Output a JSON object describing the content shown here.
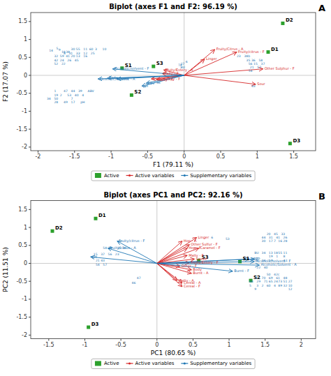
{
  "chart_data": [
    {
      "type": "biplot",
      "title": "Biplot (axes F1 and F2: 96.19 %)",
      "xlabel": "F1 (79.11 %)",
      "ylabel": "F2 (17.07 %)",
      "panel_label": "A",
      "xlim": [
        -2.1,
        1.8
      ],
      "ylim": [
        -2.1,
        1.75
      ],
      "xticks": [
        -2,
        -1.5,
        -1,
        -0.5,
        0,
        0.5,
        1,
        1.5
      ],
      "yticks": [
        -2,
        -1.5,
        -1,
        -0.5,
        0,
        0.5,
        1,
        1.5
      ],
      "grid": false,
      "legend": "bottom",
      "series": [
        {
          "name": "Active",
          "type": "scatter",
          "marker": "square",
          "color": "#2ca02c",
          "labels": [
            "D1",
            "D2",
            "D3",
            "S1",
            "S2",
            "S3"
          ],
          "x": [
            1.15,
            1.35,
            1.45,
            -0.85,
            -0.72,
            -0.42
          ],
          "values": [
            0.65,
            1.45,
            -1.9,
            0.2,
            -0.55,
            0.25
          ]
        },
        {
          "name": "Active variables",
          "type": "arrow",
          "color": "#d62728",
          "labels": [
            "Fruity/Citrus - A",
            "Fruity/citrus - F",
            "Linger",
            "Other Sulphur - F",
            "Sour",
            "Fruity/Estery - A",
            "Malty - F",
            "Malty - A",
            "Fruity/Estery - F"
          ],
          "x": [
            0.42,
            0.72,
            0.28,
            1.08,
            0.98,
            -0.28,
            -0.3,
            -0.38,
            -0.45
          ],
          "values": [
            0.72,
            0.65,
            0.45,
            0.18,
            -0.25,
            0.15,
            0.05,
            -0.12,
            -0.1
          ]
        },
        {
          "name": "Supplementary variables",
          "type": "arrow",
          "color": "#1f77b4",
          "labels": [
            "Alcoholic/solvent - F",
            "Alcoholic/Solvent - A",
            "Body",
            "Sweet",
            "ABV",
            "pH"
          ],
          "x": [
            -0.98,
            -1.18,
            -1.05,
            -0.92,
            -0.52,
            -0.58
          ],
          "values": [
            0.18,
            -0.1,
            -0.08,
            -0.1,
            -0.22,
            -0.3
          ]
        }
      ],
      "annotation_color": "#1f77b4",
      "annotations": [
        {
          "text": "5",
          "x": -1.75,
          "y": 0.75
        },
        {
          "text": "14",
          "x": -1.85,
          "y": 0.68
        },
        {
          "text": "9",
          "x": -1.72,
          "y": 0.7
        },
        {
          "text": "18",
          "x": -1.68,
          "y": 0.65
        },
        {
          "text": "38",
          "x": -1.62,
          "y": 0.65
        },
        {
          "text": "30",
          "x": -1.55,
          "y": 0.72
        },
        {
          "text": "55",
          "x": -1.48,
          "y": 0.72
        },
        {
          "text": "11",
          "x": -1.38,
          "y": 0.72
        },
        {
          "text": "60",
          "x": -1.3,
          "y": 0.72
        },
        {
          "text": "3",
          "x": -1.22,
          "y": 0.72
        },
        {
          "text": "10",
          "x": -1.12,
          "y": 0.72
        },
        {
          "text": "8",
          "x": -1.65,
          "y": 0.6
        },
        {
          "text": "31",
          "x": -1.58,
          "y": 0.6
        },
        {
          "text": "33",
          "x": -1.48,
          "y": 0.6
        },
        {
          "text": "12",
          "x": -1.38,
          "y": 0.6
        },
        {
          "text": "25",
          "x": -1.28,
          "y": 0.6
        },
        {
          "text": "32",
          "x": -1.78,
          "y": 0.52
        },
        {
          "text": "59",
          "x": -1.7,
          "y": 0.52
        },
        {
          "text": "41",
          "x": -1.62,
          "y": 0.52
        },
        {
          "text": "20",
          "x": -1.55,
          "y": 0.52
        },
        {
          "text": "13",
          "x": -1.48,
          "y": 0.52
        },
        {
          "text": "16",
          "x": -1.38,
          "y": 0.52
        },
        {
          "text": "42",
          "x": -1.78,
          "y": 0.42
        },
        {
          "text": "24",
          "x": -1.7,
          "y": 0.42
        },
        {
          "text": "26",
          "x": -1.6,
          "y": 0.42
        },
        {
          "text": "45",
          "x": -1.5,
          "y": 0.42
        },
        {
          "text": "52",
          "x": -1.78,
          "y": 0.32
        },
        {
          "text": "22",
          "x": -1.68,
          "y": 0.32
        },
        {
          "text": "TP",
          "x": -0.08,
          "y": 0.28
        },
        {
          "text": "6",
          "x": 0.02,
          "y": 0.38
        },
        {
          "text": "27",
          "x": -0.05,
          "y": 0.32
        },
        {
          "text": "BU",
          "x": -0.05,
          "y": 0.22
        },
        {
          "text": "46",
          "x": -0.38,
          "y": -0.2
        },
        {
          "text": "1",
          "x": -1.78,
          "y": -0.45
        },
        {
          "text": "47",
          "x": -1.65,
          "y": -0.45
        },
        {
          "text": "44",
          "x": -1.55,
          "y": -0.45
        },
        {
          "text": "39",
          "x": -1.45,
          "y": -0.45
        },
        {
          "text": "ABV",
          "x": -1.32,
          "y": -0.45
        },
        {
          "text": "19",
          "x": -1.78,
          "y": -0.55
        },
        {
          "text": "2",
          "x": -1.7,
          "y": -0.55
        },
        {
          "text": "53",
          "x": -1.6,
          "y": -0.55
        },
        {
          "text": "40",
          "x": -1.5,
          "y": -0.55
        },
        {
          "text": "4",
          "x": -1.4,
          "y": -0.55
        },
        {
          "text": "50",
          "x": -1.78,
          "y": -0.65
        },
        {
          "text": "34",
          "x": -1.88,
          "y": -0.65
        },
        {
          "text": "7",
          "x": -1.55,
          "y": -0.65
        },
        {
          "text": "28",
          "x": -1.78,
          "y": -0.75
        },
        {
          "text": "49",
          "x": -1.65,
          "y": -0.75
        },
        {
          "text": "17",
          "x": -1.55,
          "y": -0.75
        },
        {
          "text": "pH",
          "x": -1.42,
          "y": -0.75
        },
        {
          "text": "23",
          "x": 0.72,
          "y": 0.52
        },
        {
          "text": "38b",
          "x": 0.82,
          "y": 0.52
        },
        {
          "text": "35",
          "x": 0.85,
          "y": 0.42
        },
        {
          "text": "36",
          "x": 0.92,
          "y": 0.42
        },
        {
          "text": "58",
          "x": 1.02,
          "y": 0.42
        },
        {
          "text": "56",
          "x": 0.88,
          "y": 0.32
        },
        {
          "text": "15",
          "x": 0.95,
          "y": 0.32
        },
        {
          "text": "37",
          "x": 1.05,
          "y": 0.32
        },
        {
          "text": "21",
          "x": 0.9,
          "y": 0.22
        },
        {
          "text": "57",
          "x": 1.0,
          "y": 0.22
        },
        {
          "text": "54",
          "x": 0.88,
          "y": 0.12
        },
        {
          "text": "43",
          "x": 0.92,
          "y": -0.3
        }
      ]
    },
    {
      "type": "biplot",
      "title": "Biplot (axes PC1 and PC2: 92.16 %)",
      "xlabel": "PC1 (80.65 %)",
      "ylabel": "PC2 (11.51 %)",
      "panel_label": "B",
      "xlim": [
        -1.75,
        2.2
      ],
      "ylim": [
        -2.1,
        1.75
      ],
      "xticks": [
        -1.5,
        -1,
        -0.5,
        0,
        0.5,
        1,
        1.5,
        2
      ],
      "yticks": [
        -2,
        -1.5,
        -1,
        -0.5,
        0,
        0.5,
        1,
        1.5
      ],
      "grid": false,
      "legend": "bottom",
      "series": [
        {
          "name": "Active",
          "type": "scatter",
          "marker": "square",
          "color": "#2ca02c",
          "labels": [
            "D1",
            "D2",
            "D3",
            "S1",
            "S2",
            "S3"
          ],
          "x": [
            -0.85,
            -1.45,
            -0.95,
            1.15,
            1.3,
            0.58
          ],
          "values": [
            1.25,
            0.9,
            -1.78,
            0.05,
            -0.48,
            0.08
          ]
        },
        {
          "name": "Active variables",
          "type": "arrow",
          "color": "#d62728",
          "labels": [
            "Linger",
            "Hop - A",
            "Other Sulfur - F",
            "Hop - F",
            "Caramel - F",
            "Malty - F",
            "Sweet",
            "Fruity/Estory - F",
            "Other - F",
            "Body",
            "Burnt - A",
            "Malty - A",
            "Cereal - A",
            "Cereal - F"
          ],
          "x": [
            0.55,
            0.35,
            0.45,
            0.42,
            0.58,
            0.42,
            0.52,
            0.45,
            0.32,
            0.48,
            0.48,
            0.28,
            0.35,
            0.35
          ],
          "values": [
            0.72,
            0.62,
            0.52,
            0.42,
            0.42,
            0.22,
            0.12,
            0.02,
            -0.08,
            -0.18,
            -0.28,
            -0.48,
            -0.55,
            -0.65
          ]
        },
        {
          "name": "Supplementary variables",
          "type": "arrow",
          "color": "#1f77b4",
          "labels": [
            "Fruity/citrus - F",
            "Fruity/citrus - A",
            "Alcoholic/solvent - F",
            "Alcoholic/Solvent - A",
            "Burnt - F",
            "pH",
            "ABV",
            "TP"
          ],
          "x": [
            -0.55,
            -0.68,
            1.35,
            1.42,
            1.05,
            -0.92,
            1.28,
            1.35
          ],
          "values": [
            0.62,
            0.42,
            0.05,
            -0.05,
            -0.22,
            0.18,
            0.12,
            0.12
          ]
        }
      ],
      "annotation_color": "#1f77b4",
      "annotations": [
        {
          "text": "58",
          "x": -0.75,
          "y": 0.42
        },
        {
          "text": "38",
          "x": -0.68,
          "y": 0.42
        },
        {
          "text": "35",
          "x": -0.55,
          "y": 0.42
        },
        {
          "text": "36",
          "x": -0.48,
          "y": 0.42
        },
        {
          "text": "15",
          "x": -0.88,
          "y": 0.25
        },
        {
          "text": "37",
          "x": -0.78,
          "y": 0.25
        },
        {
          "text": "56",
          "x": -0.68,
          "y": 0.25
        },
        {
          "text": "23",
          "x": -0.58,
          "y": 0.25
        },
        {
          "text": "21",
          "x": -0.85,
          "y": 0.08
        },
        {
          "text": "43",
          "x": -0.78,
          "y": 0.08
        },
        {
          "text": "54",
          "x": -0.85,
          "y": -0.05
        },
        {
          "text": "57",
          "x": -0.75,
          "y": -0.05
        },
        {
          "text": "47",
          "x": -0.28,
          "y": -0.42
        },
        {
          "text": "46",
          "x": -0.35,
          "y": -0.55
        },
        {
          "text": "6",
          "x": 0.75,
          "y": 0.72
        },
        {
          "text": "53",
          "x": 0.95,
          "y": 0.68
        },
        {
          "text": "20",
          "x": 1.52,
          "y": 0.82
        },
        {
          "text": "45",
          "x": 1.62,
          "y": 0.82
        },
        {
          "text": "33",
          "x": 1.72,
          "y": 0.82
        },
        {
          "text": "44",
          "x": 1.45,
          "y": 0.72
        },
        {
          "text": "31",
          "x": 1.55,
          "y": 0.72
        },
        {
          "text": "41",
          "x": 1.65,
          "y": 0.72
        },
        {
          "text": "26",
          "x": 1.75,
          "y": 0.72
        },
        {
          "text": "30",
          "x": 1.45,
          "y": 0.62
        },
        {
          "text": "17",
          "x": 1.55,
          "y": 0.62
        },
        {
          "text": "7",
          "x": 1.62,
          "y": 0.62
        },
        {
          "text": "16",
          "x": 1.68,
          "y": 0.62
        },
        {
          "text": "28",
          "x": 1.75,
          "y": 0.62
        },
        {
          "text": "BU",
          "x": 1.35,
          "y": 0.28
        },
        {
          "text": "34",
          "x": 1.45,
          "y": 0.28
        },
        {
          "text": "13",
          "x": 1.55,
          "y": 0.28
        },
        {
          "text": "18",
          "x": 1.62,
          "y": 0.28
        },
        {
          "text": "55",
          "x": 1.68,
          "y": 0.28
        },
        {
          "text": "11",
          "x": 1.75,
          "y": 0.28
        },
        {
          "text": "19",
          "x": 1.55,
          "y": 0.18
        },
        {
          "text": "1",
          "x": 1.65,
          "y": 0.18
        },
        {
          "text": "8",
          "x": 1.75,
          "y": 0.18
        },
        {
          "text": "25",
          "x": 1.35,
          "y": 0.08
        },
        {
          "text": "14",
          "x": 1.45,
          "y": 0.08
        },
        {
          "text": "59",
          "x": 1.55,
          "y": 0.08
        },
        {
          "text": "42",
          "x": 1.75,
          "y": 0.08
        },
        {
          "text": "22",
          "x": 1.38,
          "y": -0.12
        },
        {
          "text": "40",
          "x": 1.48,
          "y": -0.12
        },
        {
          "text": "50",
          "x": 1.52,
          "y": -0.32
        },
        {
          "text": "42c",
          "x": 1.62,
          "y": -0.32
        },
        {
          "text": "72",
          "x": 1.35,
          "y": -0.42
        },
        {
          "text": "70",
          "x": 1.45,
          "y": -0.42
        },
        {
          "text": "69",
          "x": 1.55,
          "y": -0.42
        },
        {
          "text": "61",
          "x": 1.65,
          "y": -0.42
        },
        {
          "text": "48",
          "x": 1.75,
          "y": -0.42
        },
        {
          "text": "68",
          "x": 1.28,
          "y": -0.52
        },
        {
          "text": "29",
          "x": 1.38,
          "y": -0.52
        },
        {
          "text": "71",
          "x": 1.48,
          "y": -0.52
        },
        {
          "text": "65",
          "x": 1.55,
          "y": -0.52
        },
        {
          "text": "24",
          "x": 1.62,
          "y": -0.52
        },
        {
          "text": "73",
          "x": 1.68,
          "y": -0.52
        },
        {
          "text": "51",
          "x": 1.75,
          "y": -0.52
        },
        {
          "text": "27",
          "x": 1.82,
          "y": -0.52
        },
        {
          "text": "5",
          "x": 1.28,
          "y": -0.62
        },
        {
          "text": "3",
          "x": 1.38,
          "y": -0.62
        },
        {
          "text": "2",
          "x": 1.45,
          "y": -0.62
        },
        {
          "text": "60",
          "x": 1.52,
          "y": -0.62
        },
        {
          "text": "4",
          "x": 1.62,
          "y": -0.62
        },
        {
          "text": "89",
          "x": 1.68,
          "y": -0.62
        },
        {
          "text": "32",
          "x": 1.75,
          "y": -0.62
        },
        {
          "text": "10",
          "x": 1.82,
          "y": -0.62
        },
        {
          "text": "9",
          "x": 1.35,
          "y": -0.72
        },
        {
          "text": "12",
          "x": 1.82,
          "y": -0.72
        }
      ]
    }
  ]
}
